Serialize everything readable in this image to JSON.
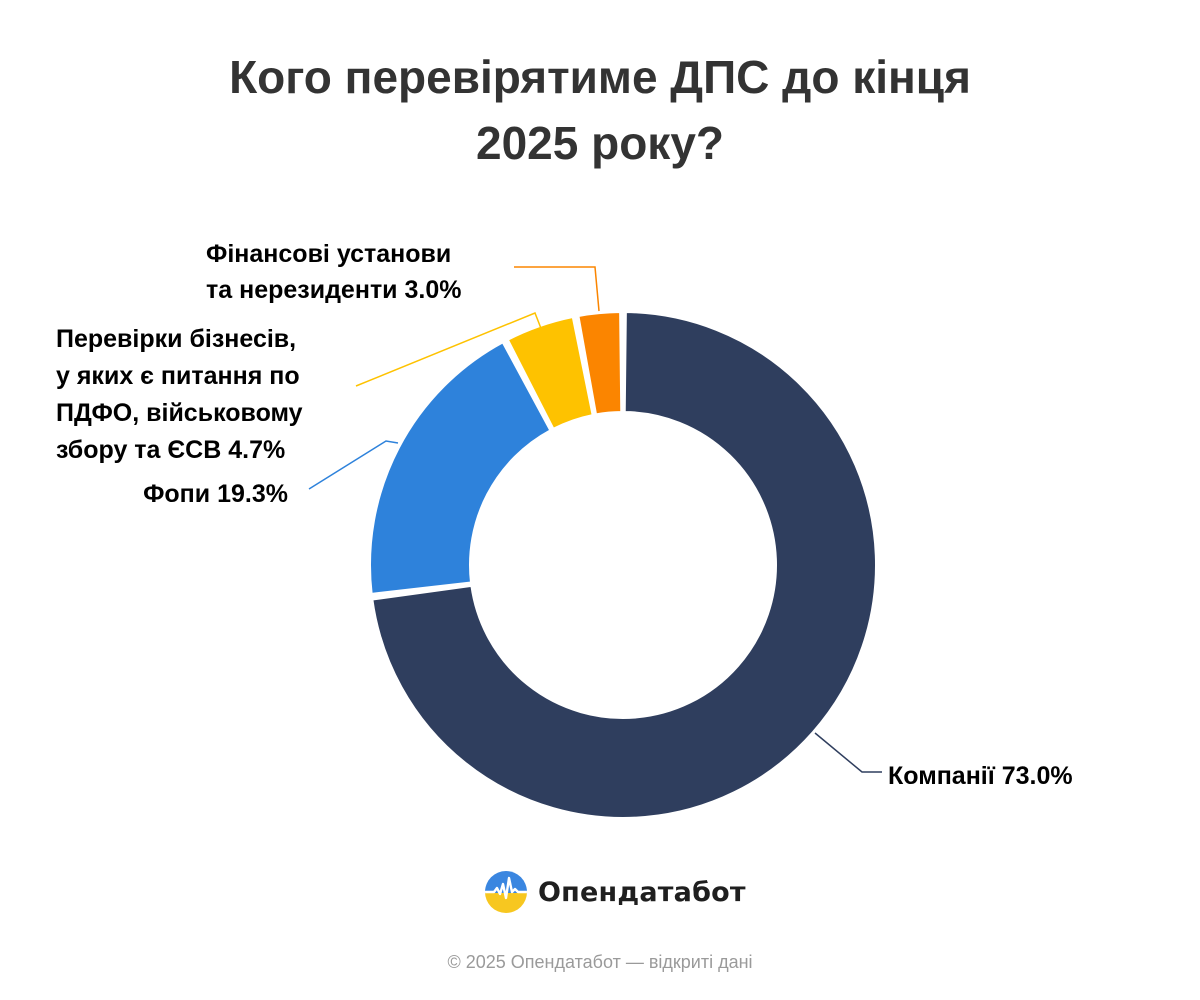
{
  "title": {
    "line1": "Кого перевірятиме ДПС до кінця",
    "line2": "2025 року?"
  },
  "chart_data": {
    "type": "pie",
    "title": "Кого перевірятиме ДПС до кінця 2025 року?",
    "unit": "%",
    "slices": [
      {
        "label": "Компанії",
        "value": 73.0,
        "value_text": "73.0%",
        "color": "#2f3e5e",
        "label_lines": [
          "Компанії 73.0%"
        ]
      },
      {
        "label": "Фопи",
        "value": 19.3,
        "value_text": "19.3%",
        "color": "#2e82db",
        "label_lines": [
          "Фопи 19.3%"
        ]
      },
      {
        "label": "Перевірки бізнесів, у яких є питання по ПДФО, військовому збору та ЄСВ",
        "value": 4.7,
        "value_text": "4.7%",
        "color": "#fec200",
        "label_lines": [
          "Перевірки бізнесів,",
          "у яких є питання по",
          "ПДФО, військовому",
          "збору та ЄСВ 4.7%"
        ]
      },
      {
        "label": "Фінансові установи та нерезиденти",
        "value": 3.0,
        "value_text": "3.0%",
        "color": "#fb8500",
        "label_lines": [
          "Фінансові установи",
          "та нерезиденти 3.0%"
        ]
      }
    ]
  },
  "brand": {
    "name": "Опендатабот",
    "logo_icon": "opendatabot-logo-icon"
  },
  "footer": {
    "text": "© 2025 Опендатабот — відкриті дані"
  }
}
